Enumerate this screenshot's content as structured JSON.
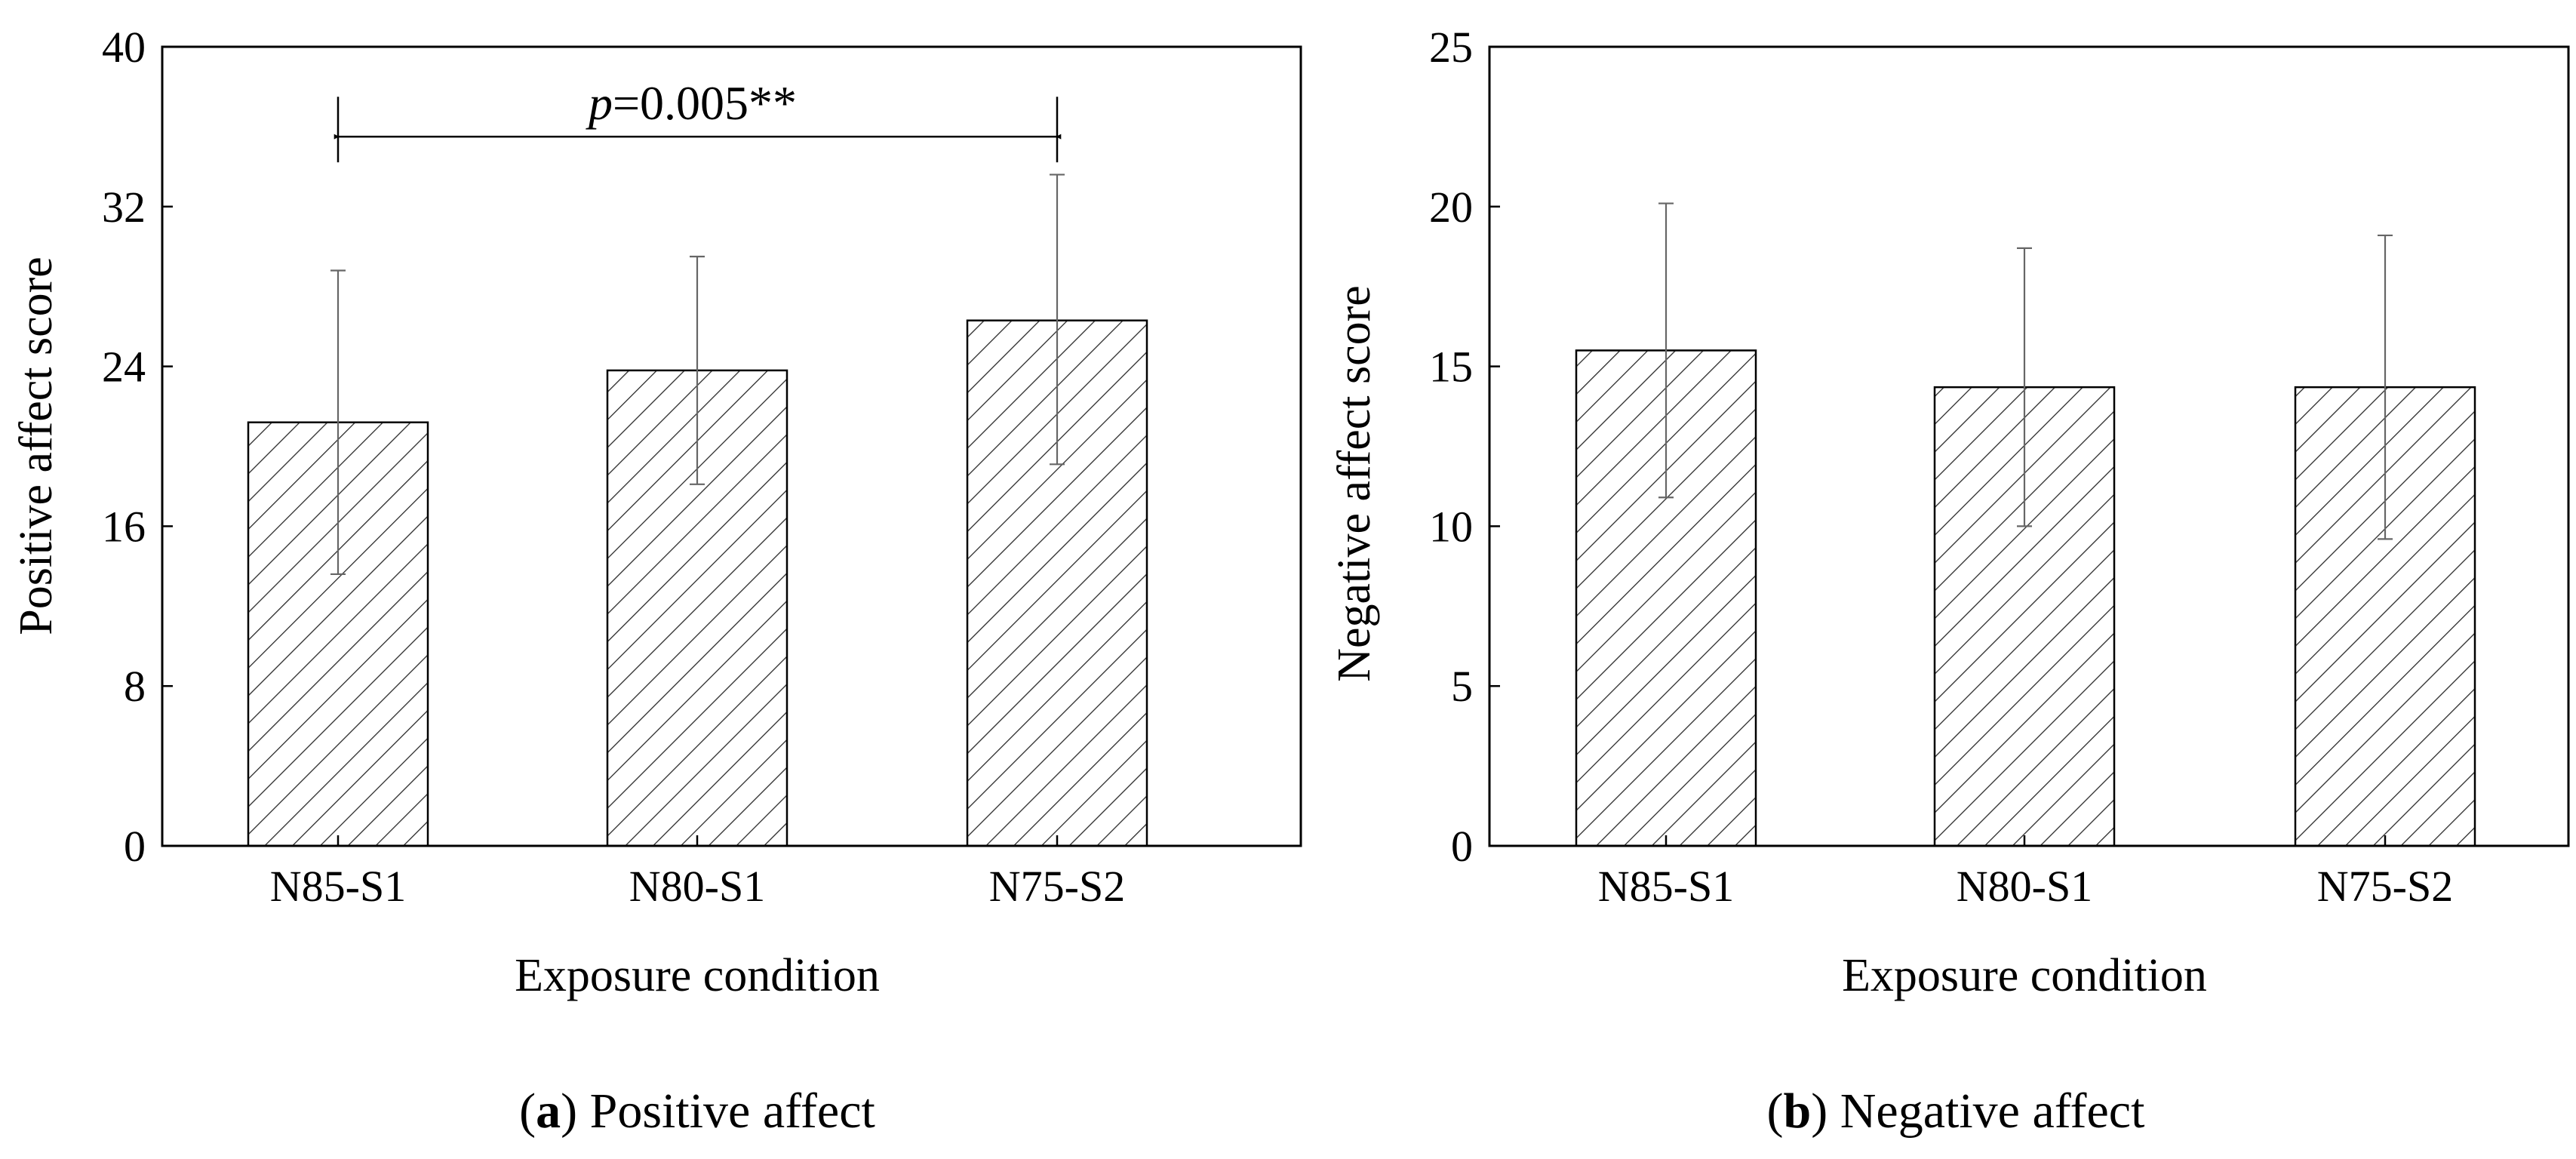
{
  "chart_data": [
    {
      "type": "bar",
      "panel_letter": "a",
      "caption": "Positive affect",
      "categories": [
        "N85-S1",
        "N80-S1",
        "N75-S2"
      ],
      "values": [
        21.2,
        23.8,
        26.3
      ],
      "error_lower": [
        13.6,
        18.1,
        19.1
      ],
      "error_upper": [
        28.8,
        29.5,
        33.6
      ],
      "xlabel": "Exposure condition",
      "ylabel": "Positive affect score",
      "ylim": [
        0,
        40
      ],
      "yticks": [
        0,
        8,
        16,
        24,
        32,
        40
      ],
      "pattern": "diagonal-hatch",
      "annotation": {
        "from": "N85-S1",
        "to": "N75-S2",
        "value": 35.5,
        "bracket_top": 37.5,
        "label_italic": "p",
        "label_rest": "=0.005**"
      }
    },
    {
      "type": "bar",
      "panel_letter": "b",
      "caption": "Negative affect",
      "categories": [
        "N85-S1",
        "N80-S1",
        "N75-S2"
      ],
      "values": [
        15.5,
        14.35,
        14.35
      ],
      "error_lower": [
        10.9,
        10.0,
        9.6
      ],
      "error_upper": [
        20.1,
        18.7,
        19.1
      ],
      "xlabel": "Exposure condition",
      "ylabel": "Negative affect score",
      "ylim": [
        0,
        25
      ],
      "yticks": [
        0,
        5,
        10,
        15,
        20,
        25
      ],
      "pattern": "diagonal-hatch"
    }
  ]
}
